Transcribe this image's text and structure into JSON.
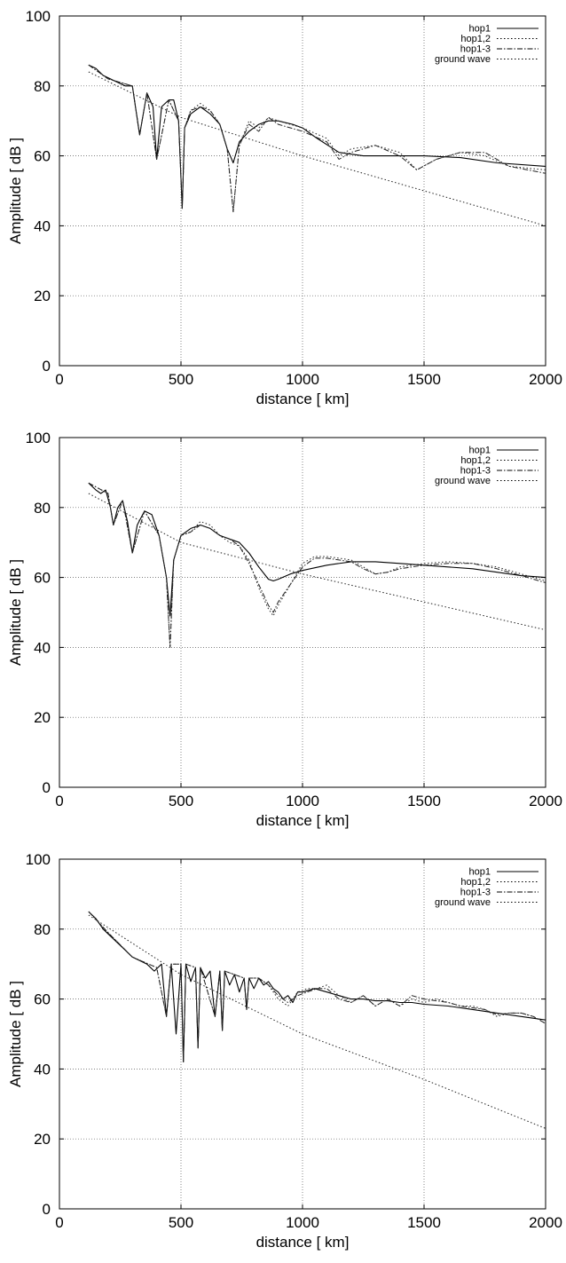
{
  "chart_data": [
    {
      "type": "line",
      "xlabel": "distance [ km]",
      "ylabel": "Amplitude [ dB ]",
      "xlim": [
        0,
        2000
      ],
      "ylim": [
        0,
        100
      ],
      "xticks": [
        "0",
        "500",
        "1000",
        "1500",
        "2000"
      ],
      "yticks": [
        "0",
        "20",
        "40",
        "60",
        "80",
        "100"
      ],
      "grid": true,
      "legend_position": "top-right",
      "legend": [
        "hop1",
        "hop1,2",
        "hop1-3",
        "ground wave"
      ],
      "series": [
        {
          "name": "hop1",
          "style": "solid",
          "x": [
            120,
            150,
            180,
            210,
            240,
            270,
            300,
            330,
            360,
            385,
            400,
            420,
            450,
            470,
            490,
            505,
            515,
            540,
            580,
            620,
            660,
            690,
            715,
            740,
            780,
            820,
            860,
            900,
            960,
            1000,
            1060,
            1150,
            1250,
            1350,
            1500,
            1650,
            1800,
            2000
          ],
          "y": [
            86,
            85,
            83,
            82,
            81,
            80,
            80,
            66,
            78,
            74,
            59,
            74,
            76,
            76,
            70,
            45,
            68,
            72,
            74,
            72,
            69,
            62,
            58,
            64,
            67,
            69,
            70,
            70,
            69,
            68,
            65,
            61,
            60,
            60,
            60,
            59.5,
            58,
            57
          ]
        },
        {
          "name": "hop1,2",
          "style": "dotted",
          "x": [
            120,
            200,
            300,
            330,
            360,
            400,
            450,
            490,
            505,
            515,
            540,
            580,
            620,
            660,
            690,
            715,
            740,
            780,
            820,
            860,
            900,
            1000,
            1100,
            1150,
            1200,
            1300,
            1400,
            1470,
            1550,
            1650,
            1750,
            1850,
            2000
          ],
          "y": [
            86,
            82,
            80,
            66,
            78,
            59,
            76,
            70,
            45,
            68,
            73,
            75,
            73,
            69,
            62,
            44,
            63,
            70,
            68,
            71,
            70,
            68,
            65,
            60,
            62,
            63,
            61,
            56,
            59,
            61,
            60,
            57,
            56
          ]
        },
        {
          "name": "hop1-3",
          "style": "dashdot",
          "x": [
            120,
            200,
            300,
            330,
            360,
            400,
            450,
            490,
            505,
            515,
            540,
            580,
            620,
            660,
            690,
            715,
            740,
            780,
            820,
            860,
            900,
            1000,
            1100,
            1150,
            1200,
            1300,
            1400,
            1470,
            1550,
            1650,
            1750,
            1850,
            2000
          ],
          "y": [
            86,
            82,
            80,
            66,
            78,
            59,
            76,
            70,
            45,
            68,
            73,
            74,
            73,
            69,
            62,
            44,
            63,
            69,
            67,
            71,
            69,
            67,
            64,
            59,
            61,
            63,
            60,
            56,
            59,
            61,
            61,
            57,
            55
          ]
        },
        {
          "name": "ground wave",
          "style": "dotted",
          "x": [
            120,
            500,
            1000,
            1500,
            2000
          ],
          "y": [
            84,
            71,
            60,
            50,
            40
          ]
        }
      ]
    },
    {
      "type": "line",
      "xlabel": "distance [ km]",
      "ylabel": "Amplitude [ dB ]",
      "xlim": [
        0,
        2000
      ],
      "ylim": [
        0,
        100
      ],
      "xticks": [
        "0",
        "500",
        "1000",
        "1500",
        "2000"
      ],
      "yticks": [
        "0",
        "20",
        "40",
        "60",
        "80",
        "100"
      ],
      "grid": true,
      "legend_position": "top-right",
      "legend": [
        "hop1",
        "hop1,2",
        "hop1-3",
        "ground wave"
      ],
      "series": [
        {
          "name": "hop1",
          "style": "solid",
          "x": [
            120,
            150,
            170,
            190,
            210,
            222,
            240,
            260,
            280,
            300,
            320,
            350,
            380,
            410,
            440,
            455,
            470,
            500,
            540,
            580,
            620,
            660,
            700,
            740,
            780,
            820,
            860,
            880,
            900,
            950,
            1000,
            1100,
            1200,
            1300,
            1400,
            1500,
            1600,
            1700,
            1800,
            1900,
            2000
          ],
          "y": [
            87,
            85,
            84,
            85,
            80,
            75,
            80,
            82,
            76,
            67,
            75,
            79,
            78,
            72,
            60,
            49,
            65,
            72,
            74,
            75,
            74,
            72,
            71,
            70,
            67,
            63,
            59.5,
            59,
            59.5,
            61,
            62,
            63.5,
            64.5,
            64.5,
            64,
            63.5,
            63,
            62.5,
            61.5,
            60.5,
            60
          ]
        },
        {
          "name": "hop1,2",
          "style": "dotted",
          "x": [
            120,
            200,
            222,
            260,
            300,
            350,
            410,
            440,
            455,
            470,
            500,
            540,
            580,
            620,
            660,
            700,
            740,
            780,
            820,
            860,
            880,
            900,
            950,
            1000,
            1050,
            1100,
            1150,
            1200,
            1250,
            1300,
            1350,
            1400,
            1500,
            1600,
            1700,
            1800,
            1900,
            2000
          ],
          "y": [
            87,
            84,
            75,
            82,
            67,
            79,
            72,
            60,
            40,
            65,
            72,
            73,
            76,
            75,
            72,
            70,
            69,
            65,
            57,
            51,
            49,
            52,
            58,
            64,
            66,
            66,
            65.5,
            65,
            63,
            61,
            61.5,
            63,
            64,
            64.5,
            64,
            63,
            61,
            59
          ]
        },
        {
          "name": "hop1-3",
          "style": "dashdot",
          "x": [
            120,
            200,
            222,
            260,
            300,
            350,
            410,
            440,
            455,
            470,
            500,
            540,
            580,
            620,
            660,
            700,
            740,
            780,
            820,
            860,
            880,
            900,
            950,
            1000,
            1050,
            1100,
            1150,
            1200,
            1250,
            1300,
            1350,
            1400,
            1500,
            1600,
            1700,
            1800,
            1900,
            2000
          ],
          "y": [
            87,
            84,
            75,
            82,
            67,
            79,
            72,
            60,
            40,
            65,
            72,
            73,
            75,
            74,
            72,
            71,
            69,
            64,
            58,
            52,
            50,
            53,
            58,
            63,
            65.5,
            65.5,
            65,
            64.5,
            62.5,
            61,
            61.5,
            62.5,
            63.5,
            64,
            64,
            62.5,
            60.5,
            58.5
          ]
        },
        {
          "name": "ground wave",
          "style": "dotted",
          "x": [
            120,
            500,
            1000,
            1500,
            2000
          ],
          "y": [
            84,
            70,
            61,
            53,
            45
          ]
        }
      ]
    },
    {
      "type": "line",
      "xlabel": "distance [ km]",
      "ylabel": "Amplitude [ dB ]",
      "xlim": [
        0,
        2000
      ],
      "ylim": [
        0,
        100
      ],
      "xticks": [
        "0",
        "500",
        "1000",
        "1500",
        "2000"
      ],
      "yticks": [
        "0",
        "20",
        "40",
        "60",
        "80",
        "100"
      ],
      "grid": true,
      "legend_position": "top-right",
      "legend": [
        "hop1",
        "hop1,2",
        "hop1-3",
        "ground wave"
      ],
      "series": [
        {
          "name": "hop1",
          "style": "solid",
          "x": [
            120,
            150,
            180,
            210,
            240,
            270,
            300,
            330,
            360,
            390,
            420,
            440,
            460,
            480,
            500,
            510,
            520,
            540,
            560,
            570,
            580,
            600,
            620,
            640,
            660,
            670,
            680,
            700,
            720,
            740,
            760,
            770,
            780,
            800,
            820,
            840,
            860,
            880,
            900,
            920,
            940,
            960,
            980,
            1000,
            1050,
            1100,
            1150,
            1200,
            1250,
            1300,
            1350,
            1400,
            1450,
            1500,
            1600,
            1700,
            1800,
            1900,
            2000
          ],
          "y": [
            85,
            83,
            80,
            78,
            76,
            74,
            72,
            71,
            70,
            68,
            70,
            55,
            70,
            50,
            70,
            42,
            70,
            65,
            69,
            46,
            69,
            66,
            68,
            55,
            68,
            51,
            68,
            64,
            67,
            62,
            66,
            57,
            66,
            63,
            66,
            64,
            65,
            63,
            62,
            60,
            61,
            59,
            62,
            62,
            63,
            62,
            61,
            60,
            60,
            59.5,
            59.5,
            59,
            59,
            58.5,
            58,
            57,
            56,
            55,
            54
          ]
        },
        {
          "name": "hop1,2",
          "style": "dotted",
          "x": [
            120,
            200,
            300,
            400,
            440,
            460,
            500,
            510,
            520,
            560,
            570,
            580,
            640,
            660,
            670,
            680,
            720,
            760,
            770,
            780,
            820,
            860,
            900,
            940,
            980,
            1020,
            1060,
            1100,
            1150,
            1200,
            1250,
            1300,
            1350,
            1400,
            1450,
            1500,
            1550,
            1600,
            1650,
            1700,
            1750,
            1800,
            1850,
            1900,
            1950,
            2000
          ],
          "y": [
            85,
            79,
            72,
            69,
            55,
            70,
            70,
            42,
            70,
            69,
            46,
            69,
            55,
            68,
            51,
            68,
            67,
            66,
            57,
            66,
            66,
            64,
            60,
            58,
            62,
            63,
            63,
            64,
            61,
            59,
            61,
            58,
            60,
            58,
            60,
            59,
            60,
            59,
            58,
            58,
            57,
            55,
            56,
            56,
            55,
            53
          ]
        },
        {
          "name": "hop1-3",
          "style": "dashdot",
          "x": [
            120,
            200,
            300,
            400,
            440,
            460,
            500,
            510,
            520,
            560,
            570,
            580,
            640,
            660,
            670,
            680,
            720,
            760,
            770,
            780,
            820,
            860,
            900,
            940,
            980,
            1020,
            1060,
            1100,
            1150,
            1200,
            1250,
            1300,
            1350,
            1400,
            1450,
            1500,
            1550,
            1600,
            1650,
            1700,
            1750,
            1800,
            1850,
            1900,
            1950,
            2000
          ],
          "y": [
            85,
            79,
            72,
            69,
            55,
            70,
            70,
            42,
            70,
            69,
            46,
            69,
            55,
            68,
            51,
            68,
            67,
            66,
            57,
            66,
            66,
            64,
            61,
            59,
            61,
            62,
            63,
            63,
            60,
            59,
            61,
            58,
            60,
            58,
            61,
            60,
            59.5,
            59,
            58,
            57.5,
            57,
            55.5,
            56,
            56,
            55,
            53
          ]
        },
        {
          "name": "ground wave",
          "style": "dotted",
          "x": [
            120,
            500,
            1000,
            1500,
            2000
          ],
          "y": [
            84,
            67,
            50,
            37,
            23
          ]
        }
      ]
    }
  ]
}
